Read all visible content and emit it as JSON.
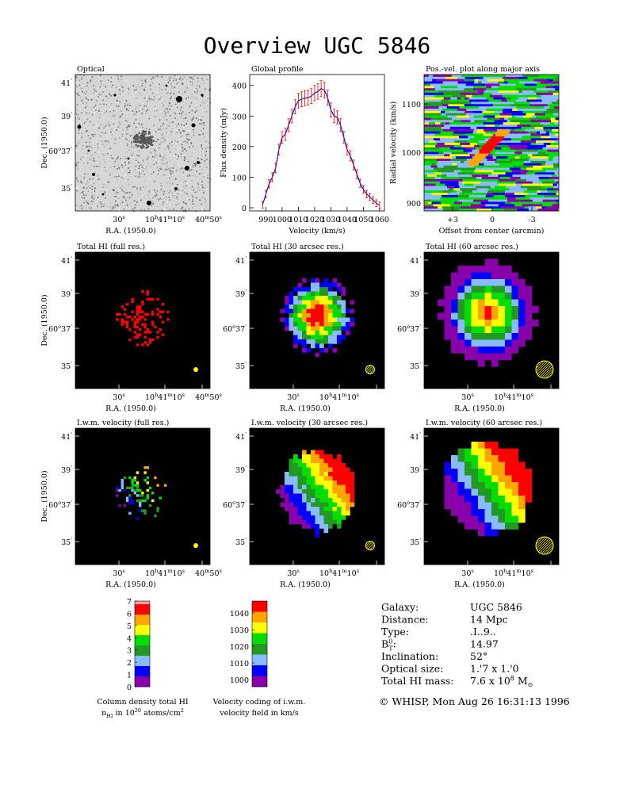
{
  "title": "Overview UGC 5846",
  "panels": {
    "optical": {
      "title": "Optical"
    },
    "global_profile": {
      "title": "Global profile"
    },
    "pv": {
      "title": "Pos.-vel. plot along major axis"
    },
    "hi_full": {
      "title": "Total HI (full res.)"
    },
    "hi_30": {
      "title": "Total HI (30 arcsec res.)"
    },
    "hi_60": {
      "title": "Total HI (60 arcsec res.)"
    },
    "vel_full": {
      "title": "I.w.m. velocity (full res.)"
    },
    "vel_30": {
      "title": "I.w.m. velocity (30 arcsec res.)"
    },
    "vel_60": {
      "title": "I.w.m. velocity (60 arcsec res.)"
    }
  },
  "sky_axes": {
    "dec_label": "Dec. (1950.0)",
    "ra_label": "R.A. (1950.0)",
    "dec_ticks": [
      "41",
      "39",
      "37",
      "35"
    ],
    "dec_tick_prefix": "60",
    "ra_ticks": [
      "30",
      "10",
      "10",
      "50"
    ],
    "ra_hour_prefix": "10",
    "ra_min_prefix": "41",
    "ra_right_prefix": "40"
  },
  "chart_data": {
    "type": "line",
    "title": "Global profile",
    "xlabel": "Velocity (km/s)",
    "ylabel": "Flux density (mJy)",
    "xlim": [
      982,
      1062
    ],
    "ylim": [
      0,
      420
    ],
    "xticks": [
      990,
      1000,
      1010,
      1020,
      1030,
      1040,
      1050,
      1060
    ],
    "yticks": [
      0,
      100,
      200,
      300,
      400
    ],
    "series": [
      {
        "x": [
          988,
          990,
          992,
          994,
          996,
          998,
          1000,
          1002,
          1004,
          1006,
          1008,
          1010,
          1012,
          1014,
          1016,
          1018,
          1020,
          1022,
          1024,
          1026,
          1028,
          1030,
          1032,
          1034,
          1036,
          1038,
          1040,
          1042,
          1044,
          1046,
          1048,
          1050,
          1052,
          1054,
          1056,
          1058,
          1060
        ],
        "y": [
          10,
          45,
          78,
          100,
          130,
          190,
          230,
          240,
          270,
          300,
          330,
          350,
          355,
          358,
          360,
          365,
          375,
          380,
          390,
          385,
          360,
          320,
          300,
          295,
          270,
          230,
          190,
          170,
          140,
          110,
          80,
          60,
          45,
          35,
          25,
          15,
          8
        ]
      }
    ]
  },
  "pv_axes": {
    "ylabel": "Radial velocity (km/s)",
    "xlabel": "Offset from center (arcmin)",
    "yticks": [
      "1100",
      "1000",
      "900"
    ],
    "xticks": [
      "+3",
      "0",
      "-3"
    ]
  },
  "colorbar_hi": {
    "ticks": [
      "7",
      "6",
      "5",
      "4",
      "3",
      "2",
      "1",
      "0"
    ],
    "caption1": "Column density total HI",
    "caption2_main": "n",
    "caption2_sub": "HI",
    "caption2_mid": " in 10",
    "caption2_sup": "20",
    "caption2_end": " atoms/cm",
    "caption2_sq": "2",
    "colors": [
      "#ffa0a0",
      "#ff0000",
      "#ffa500",
      "#ffff00",
      "#00dd00",
      "#229922",
      "#88bbff",
      "#0000ff",
      "#8800aa"
    ]
  },
  "colorbar_vel": {
    "ticks": [
      "1040",
      "1030",
      "1020",
      "1010",
      "1000"
    ],
    "caption1": "Velocity coding of i.w.m.",
    "caption2": "velocity field in km/s",
    "colors": [
      "#ff0000",
      "#ffa500",
      "#ffff00",
      "#00dd00",
      "#229922",
      "#88bbff",
      "#0000ff",
      "#8800aa"
    ]
  },
  "info": {
    "rows": [
      {
        "label": "Galaxy:",
        "value": "UGC 5846"
      },
      {
        "label": "Distance:",
        "value": "14 Mpc"
      },
      {
        "label": "Type:",
        "value": ".I..9.."
      },
      {
        "label": "B",
        "label_sup": "0",
        "label_sub": "T",
        "label_end": ":",
        "value": "14.97"
      },
      {
        "label": "Inclination:",
        "value": "52°"
      },
      {
        "label": "Optical size:",
        "value": "1.'7 x 1.'0"
      },
      {
        "label": "Total HI mass:",
        "value": "7.6 x 10",
        "value_sup": "8",
        "value_end": " M",
        "value_sub": "⊙"
      }
    ],
    "credit": "© WHISP, Mon Aug 26 16:31:13 1996"
  }
}
